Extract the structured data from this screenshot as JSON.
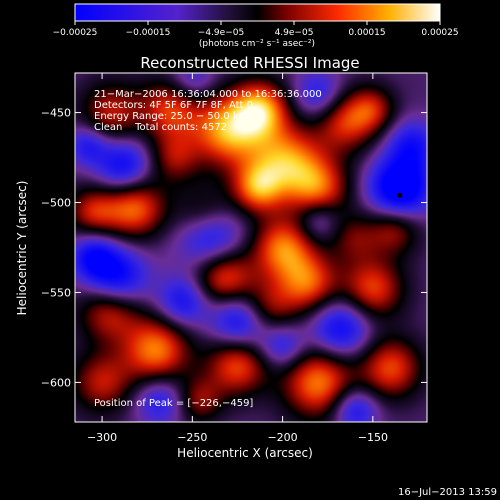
{
  "chart_data": {
    "type": "heatmap",
    "title": "Reconstructed RHESSI Image",
    "xlabel": "Heliocentric X (arcsec)",
    "ylabel": "Heliocentric Y (arcsec)",
    "xlim": [
      -315,
      -120
    ],
    "ylim": [
      -622,
      -428
    ],
    "xticks": [
      -300,
      -250,
      -200,
      -150
    ],
    "xtick_labels": [
      "−300",
      "−250",
      "−200",
      "−150"
    ],
    "yticks": [
      -450,
      -500,
      -550,
      -600
    ],
    "ytick_labels": [
      "−450",
      "−500",
      "−550",
      "−600"
    ],
    "colormap": "hot-diverging (blue-purple-red-yellow-white)",
    "colorbar": {
      "range": [
        -0.00025,
        0.00025
      ],
      "tick_labels": [
        "−0.00025",
        "−0.00015",
        "−4.9e−05",
        "4.9e−05",
        "0.00015",
        "0.00025"
      ],
      "units_text": "(photons cm⁻² s⁻¹ asec⁻²)"
    },
    "annotations": [
      "21−Mar−2006 16:36:04.000 to 16:36:36.000",
      "Detectors: 4F 5F 6F 7F 8F, Att 0",
      "Energy Range: 25.0 − 50.0 keV",
      "Clean    Total counts: 4572",
      "Position of Peak = [−226,−459]"
    ],
    "peak": {
      "x": -226,
      "y": -459
    },
    "marker": {
      "x": -135,
      "y": -496
    },
    "blobs": [
      [
        -230,
        -460,
        14,
        1.0
      ],
      [
        -212,
        -448,
        11,
        0.9
      ],
      [
        -262,
        -448,
        12,
        0.7
      ],
      [
        -295,
        -450,
        12,
        0.6
      ],
      [
        -198,
        -477,
        14,
        0.9
      ],
      [
        -214,
        -492,
        10,
        0.8
      ],
      [
        -180,
        -492,
        12,
        0.75
      ],
      [
        -165,
        -455,
        12,
        0.7
      ],
      [
        -150,
        -448,
        9,
        0.5
      ],
      [
        -243,
        -508,
        12,
        0.6
      ],
      [
        -200,
        -525,
        12,
        0.85
      ],
      [
        -186,
        -545,
        12,
        0.8
      ],
      [
        -232,
        -542,
        12,
        0.85
      ],
      [
        -210,
        -560,
        11,
        0.7
      ],
      [
        -282,
        -503,
        12,
        0.85
      ],
      [
        -305,
        -505,
        10,
        0.6
      ],
      [
        -296,
        -560,
        12,
        0.7
      ],
      [
        -270,
        -582,
        13,
        0.9
      ],
      [
        -225,
        -590,
        12,
        0.8
      ],
      [
        -180,
        -600,
        14,
        0.9
      ],
      [
        -140,
        -592,
        12,
        0.75
      ],
      [
        -150,
        -548,
        12,
        0.75
      ],
      [
        -138,
        -515,
        10,
        0.55
      ],
      [
        -300,
        -600,
        12,
        0.6
      ],
      [
        -260,
        -475,
        10,
        0.5
      ],
      [
        -160,
        -520,
        10,
        0.4
      ],
      [
        -246,
        -610,
        9,
        0.5
      ],
      [
        -135,
        -492,
        12,
        -1.0
      ],
      [
        -222,
        -565,
        12,
        -0.9
      ],
      [
        -240,
        -518,
        13,
        -0.85
      ],
      [
        -292,
        -542,
        12,
        -0.8
      ],
      [
        -288,
        -480,
        11,
        -0.7
      ],
      [
        -305,
        -530,
        9,
        -0.6
      ],
      [
        -168,
        -570,
        12,
        -0.7
      ],
      [
        -200,
        -580,
        9,
        -0.5
      ],
      [
        -268,
        -610,
        10,
        -0.5
      ],
      [
        -180,
        -440,
        10,
        -0.5
      ],
      [
        -250,
        -432,
        9,
        -0.4
      ],
      [
        -160,
        -615,
        9,
        -0.6
      ],
      [
        -128,
        -468,
        10,
        -0.55
      ],
      [
        -255,
        -555,
        10,
        -0.6
      ],
      [
        -180,
        -510,
        8,
        -0.4
      ],
      [
        -308,
        -468,
        8,
        -0.5
      ]
    ]
  },
  "footer": {
    "timestamp": "16−Jul−2013 13:59"
  }
}
